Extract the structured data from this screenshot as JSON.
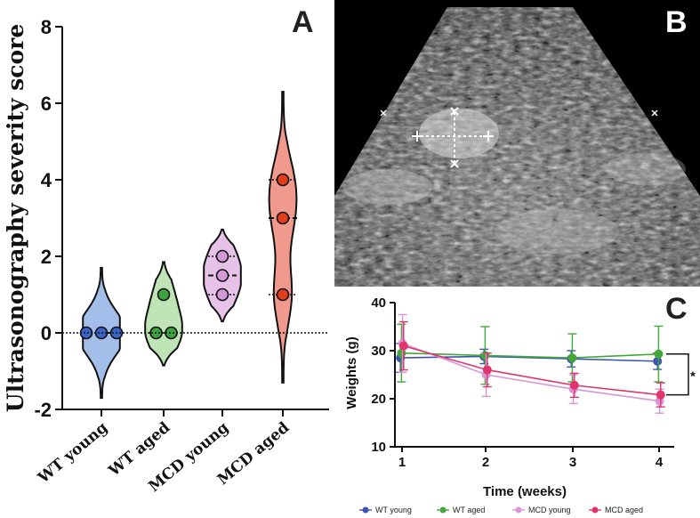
{
  "panel_a": {
    "letter": "A",
    "chart_data": {
      "type": "violin",
      "ylabel": "Ultrasonography severity score",
      "ylim": [
        -2,
        8
      ],
      "yticks": [
        "8",
        "6",
        "4",
        "2",
        "0",
        "-2"
      ],
      "reference_line": 0,
      "categories": [
        "WT young",
        "WT aged",
        "MCD young",
        "MCD aged"
      ],
      "colors": [
        "#a3bfe9",
        "#bfe4b6",
        "#e6c2e9",
        "#f09a8e"
      ],
      "point_colors": [
        "#3a63c6",
        "#3ea33e",
        "#d29ad9",
        "#e03d1c"
      ],
      "points": [
        [
          0,
          0,
          0
        ],
        [
          0,
          0,
          1
        ],
        [
          1,
          1.5,
          2
        ],
        [
          1,
          3,
          4
        ]
      ],
      "quartiles": [
        [
          0,
          0,
          0
        ],
        [
          0,
          0,
          0
        ],
        [
          1,
          1.5,
          2
        ],
        [
          1,
          3,
          4
        ]
      ],
      "violin_range": [
        [
          -1.7,
          1.7
        ],
        [
          -0.85,
          1.85
        ],
        [
          0.3,
          2.7
        ],
        [
          -1.3,
          6.3
        ]
      ]
    }
  },
  "panel_b": {
    "letter": "B"
  },
  "panel_c": {
    "letter": "C",
    "chart_data": {
      "type": "line",
      "xlabel": "Time (weeks)",
      "ylabel": "Weights (g)",
      "x": [
        1,
        2,
        3,
        4
      ],
      "xticks": [
        "1",
        "2",
        "3",
        "4"
      ],
      "yticks": [
        "40",
        "30",
        "20",
        "10"
      ],
      "ylim": [
        10,
        40
      ],
      "significance": "*",
      "series": [
        {
          "name": "WT young",
          "color": "#3c55b5",
          "values": [
            28.5,
            28.8,
            28.3,
            27.8
          ],
          "errors": [
            3.0,
            1.5,
            1.7,
            1.7
          ]
        },
        {
          "name": "WT aged",
          "color": "#43a73a",
          "values": [
            29.5,
            29.0,
            28.5,
            29.3
          ],
          "errors": [
            6.0,
            6.0,
            5.0,
            5.8
          ]
        },
        {
          "name": "MCD young",
          "color": "#d696d8",
          "values": [
            31.5,
            25.0,
            22.0,
            19.5
          ],
          "errors": [
            6.0,
            4.5,
            3.0,
            2.5
          ]
        },
        {
          "name": "MCD aged",
          "color": "#e0346a",
          "values": [
            31.0,
            26.0,
            22.8,
            20.8
          ],
          "errors": [
            5.0,
            3.5,
            2.5,
            2.5
          ]
        }
      ]
    }
  }
}
